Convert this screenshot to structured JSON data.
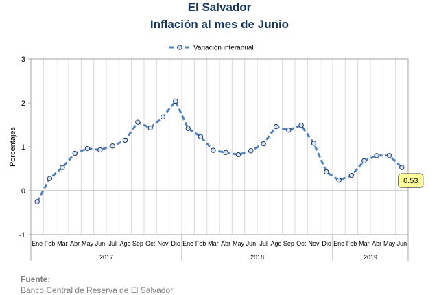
{
  "chart_data": {
    "type": "line",
    "title": "El Salvador",
    "subtitle": "Inflación al mes de Junio",
    "ylabel": "Porcentajes",
    "xlabel": "",
    "ylim": [
      -1,
      3
    ],
    "yticks": [
      "-1",
      "0",
      "1",
      "2",
      "3"
    ],
    "grid": "vertical",
    "legend_position": "top",
    "months": [
      "Ene",
      "Feb",
      "Mar",
      "Abr",
      "May",
      "Jun",
      "Jul",
      "Ago",
      "Sep",
      "Oct",
      "Nov",
      "Dic",
      "Ene",
      "Feb",
      "Mar",
      "Abr",
      "May",
      "Jun",
      "Jul",
      "Ago",
      "Sep",
      "Oct",
      "Nov",
      "Dic",
      "Ene",
      "Feb",
      "Mar",
      "Abr",
      "May",
      "Jun"
    ],
    "years": [
      {
        "label": "2017",
        "months": 12
      },
      {
        "label": "2018",
        "months": 12
      },
      {
        "label": "2019",
        "months": 6
      }
    ],
    "series": [
      {
        "name": "Variación interanual",
        "color": "#4f81bd",
        "values": [
          -0.25,
          0.28,
          0.53,
          0.85,
          0.96,
          0.93,
          1.02,
          1.15,
          1.56,
          1.43,
          1.68,
          2.04,
          1.42,
          1.23,
          0.92,
          0.87,
          0.82,
          0.91,
          1.07,
          1.46,
          1.38,
          1.49,
          1.08,
          0.43,
          0.24,
          0.35,
          0.68,
          0.8,
          0.8,
          0.53
        ]
      }
    ],
    "annotation": {
      "index": 29,
      "text": "0.53",
      "fill": "#ffff99"
    }
  },
  "source": {
    "label": "Fuente:",
    "text": "Banco Central de Reserva de El Salvador"
  }
}
